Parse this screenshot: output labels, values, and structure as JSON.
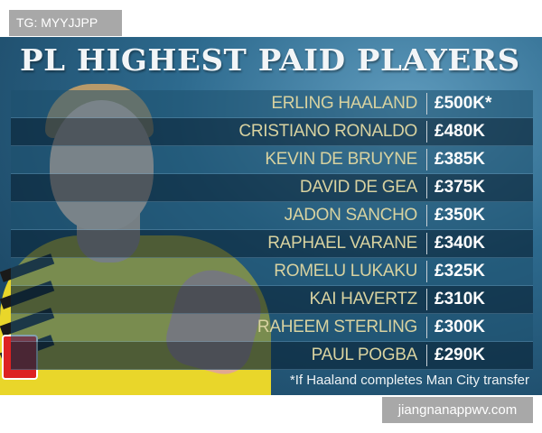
{
  "watermark_top": "TG: MYYJJPP",
  "watermark_bottom": "jiangnanappwv.com",
  "title": "PL HIGHEST PAID PLAYERS",
  "players": [
    {
      "name": "ERLING HAALAND",
      "wage": "£500K*"
    },
    {
      "name": "CRISTIANO RONALDO",
      "wage": "£480K"
    },
    {
      "name": "KEVIN DE BRUYNE",
      "wage": "£385K"
    },
    {
      "name": "DAVID DE GEA",
      "wage": "£375K"
    },
    {
      "name": "JADON SANCHO",
      "wage": "£350K"
    },
    {
      "name": "RAPHAEL VARANE",
      "wage": "£340K"
    },
    {
      "name": "ROMELU LUKAKU",
      "wage": "£325K"
    },
    {
      "name": "KAI HAVERTZ",
      "wage": "£310K"
    },
    {
      "name": "RAHEEM STERLING",
      "wage": "£300K"
    },
    {
      "name": "PAUL POGBA",
      "wage": "£290K"
    }
  ],
  "footnote": "*If Haaland completes Man City transfer",
  "colors": {
    "name_text": "#d8d2a0",
    "shirt": "#e9d62a",
    "background": "#2d6a8e"
  }
}
